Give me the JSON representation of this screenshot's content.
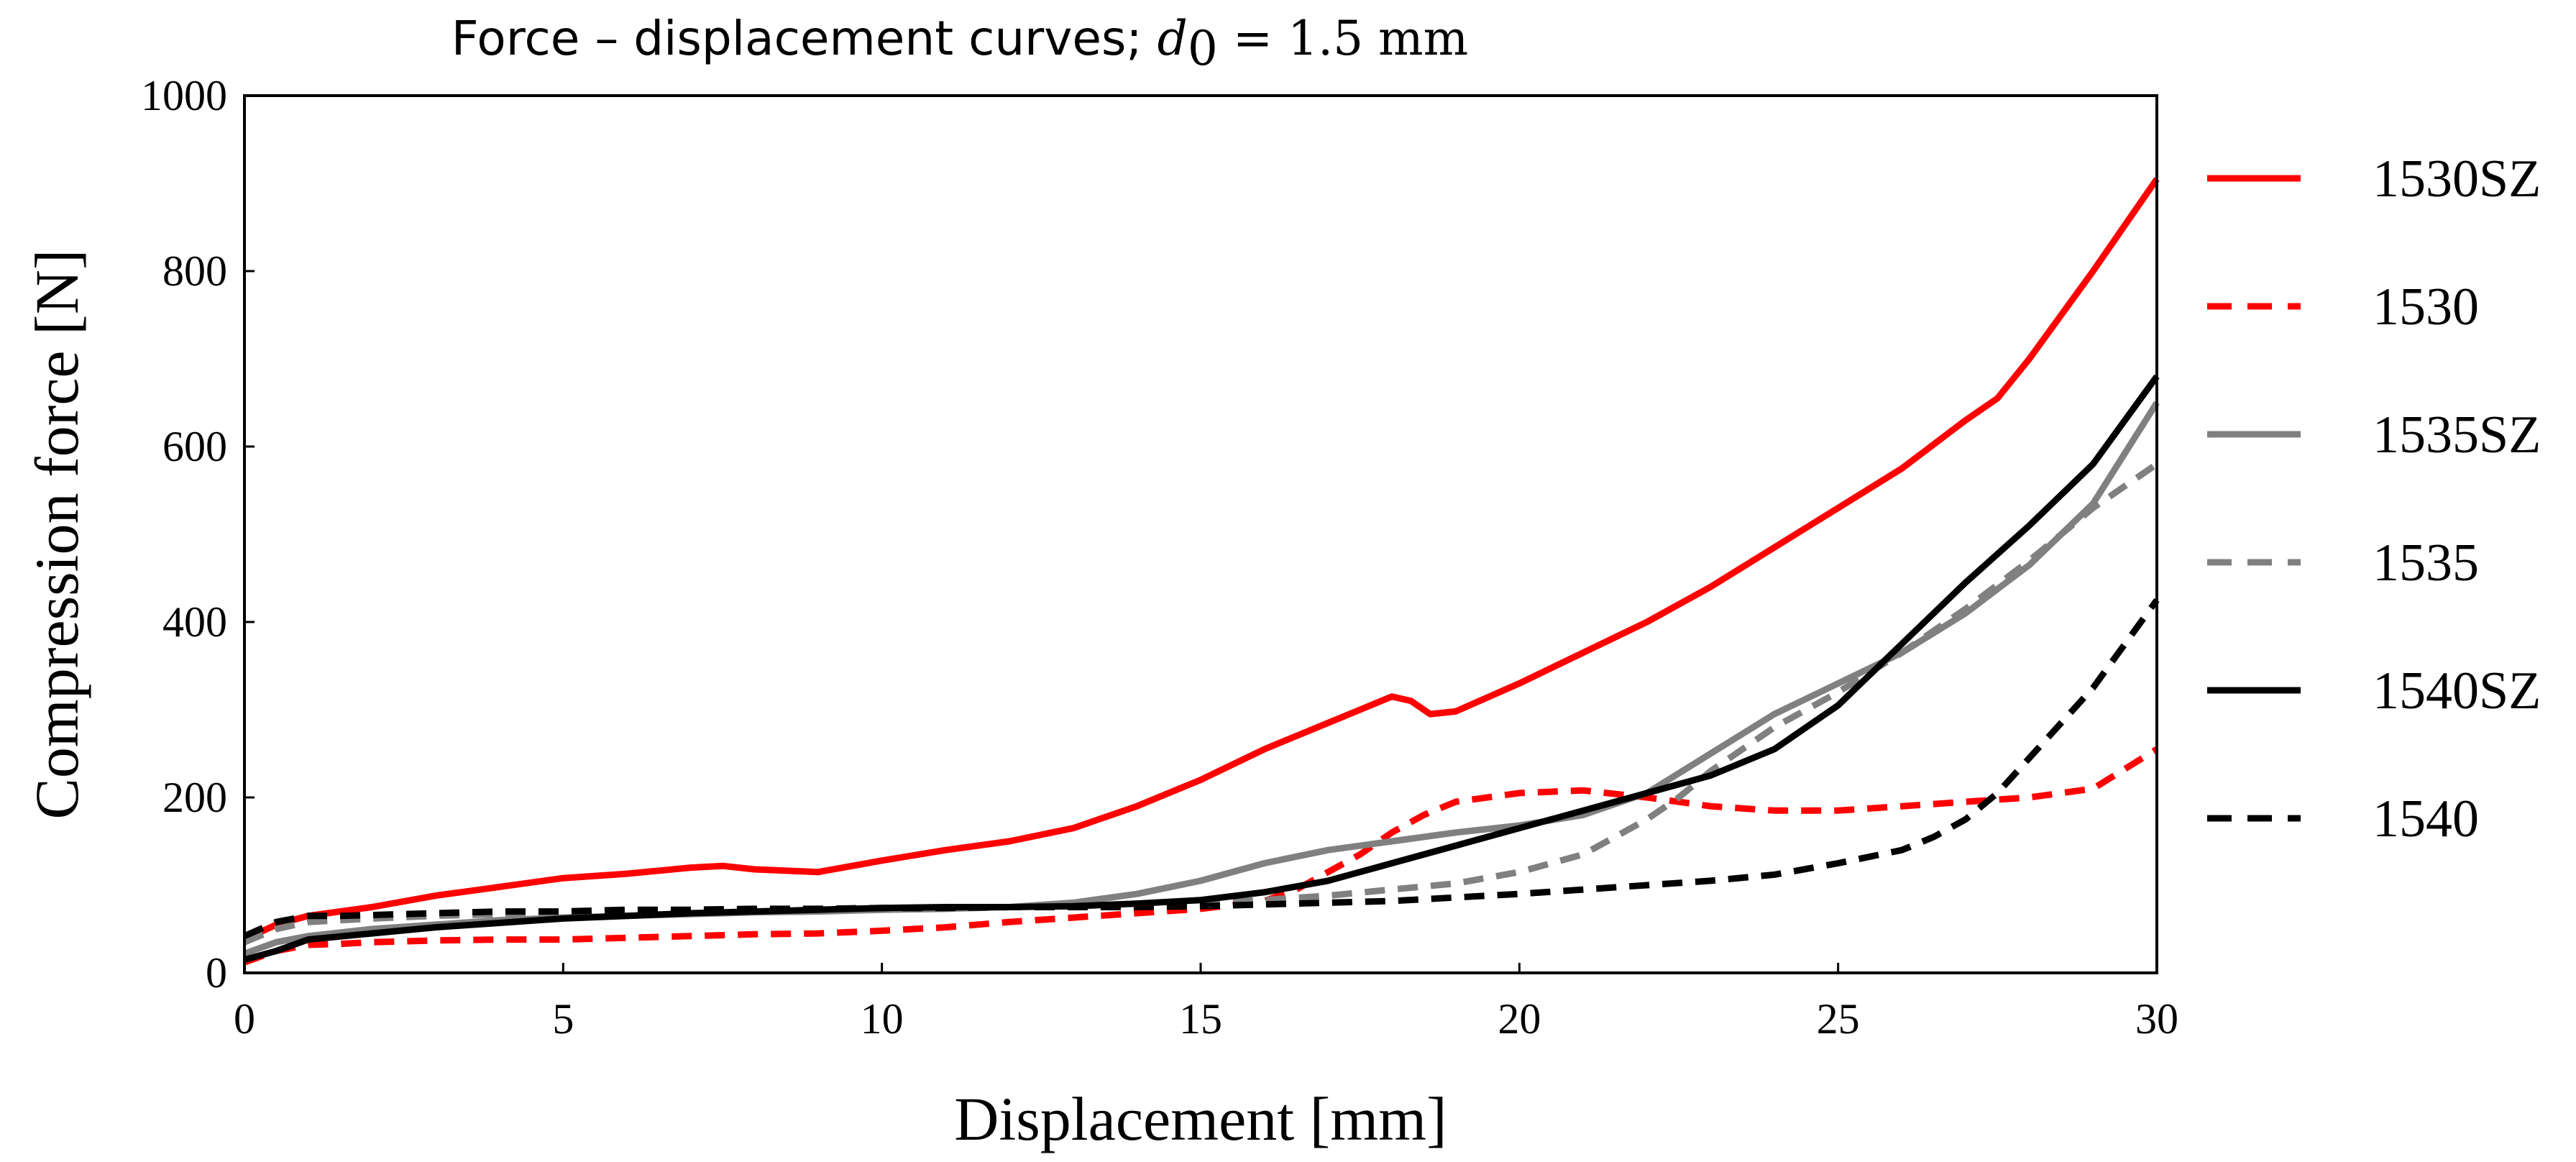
{
  "chart_data": {
    "type": "line",
    "title": "Force – displacement curves; ",
    "title_math": {
      "var": "d",
      "sub": "0",
      "eq": " = 1.5 mm"
    },
    "xlabel": "Displacement [mm]",
    "ylabel": "Compression force [N]",
    "xlim": [
      0,
      30
    ],
    "ylim": [
      0,
      1000
    ],
    "xticks": [
      "0",
      "5",
      "10",
      "15",
      "20",
      "25",
      "30"
    ],
    "yticks": [
      "0",
      "200",
      "400",
      "600",
      "800",
      "1000"
    ],
    "grid": false,
    "legend_position": "right",
    "series": [
      {
        "name": "1530SZ",
        "color": "#ff0000",
        "dash": "solid",
        "x": [
          0,
          0.5,
          1,
          2,
          3,
          4,
          5,
          6,
          7,
          7.5,
          8,
          9,
          10,
          11,
          12,
          13,
          14,
          15,
          16,
          17,
          17.5,
          18,
          18.3,
          18.6,
          19,
          20,
          21,
          22,
          23,
          24,
          25,
          26,
          27,
          27.5,
          28,
          29,
          30
        ],
        "y": [
          38,
          55,
          65,
          75,
          88,
          98,
          108,
          113,
          120,
          122,
          118,
          115,
          128,
          140,
          150,
          165,
          190,
          220,
          255,
          285,
          300,
          315,
          310,
          295,
          298,
          330,
          365,
          400,
          440,
          485,
          530,
          575,
          630,
          655,
          700,
          800,
          905
        ]
      },
      {
        "name": "1530",
        "color": "#ff0000",
        "dash": "dashed",
        "x": [
          0,
          0.5,
          1,
          1.5,
          2,
          3,
          4,
          5,
          6,
          7,
          8,
          9,
          10,
          11,
          12,
          13,
          14,
          15,
          16,
          16.5,
          17,
          17.5,
          18,
          18.5,
          19,
          20,
          21,
          22,
          23,
          24,
          25,
          26,
          27,
          28,
          29,
          30
        ],
        "y": [
          12,
          25,
          32,
          33,
          35,
          37,
          38,
          38,
          40,
          42,
          44,
          45,
          48,
          52,
          58,
          63,
          68,
          73,
          82,
          95,
          115,
          135,
          160,
          180,
          195,
          205,
          208,
          200,
          190,
          185,
          185,
          190,
          195,
          200,
          210,
          255
        ]
      },
      {
        "name": "1535SZ",
        "color": "#808080",
        "dash": "solid",
        "x": [
          0,
          0.5,
          1,
          2,
          3,
          4,
          5,
          6,
          7,
          8,
          9,
          10,
          11,
          12,
          13,
          14,
          15,
          16,
          17,
          18,
          19,
          20,
          21,
          22,
          23,
          24,
          25,
          26,
          27,
          28,
          29,
          30
        ],
        "y": [
          22,
          35,
          42,
          50,
          55,
          60,
          63,
          65,
          67,
          69,
          70,
          72,
          73,
          75,
          80,
          90,
          105,
          125,
          140,
          150,
          160,
          168,
          180,
          205,
          250,
          295,
          330,
          365,
          410,
          465,
          535,
          650
        ]
      },
      {
        "name": "1535",
        "color": "#808080",
        "dash": "dashed",
        "x": [
          0,
          0.5,
          1,
          2,
          3,
          4,
          5,
          6,
          7,
          8,
          9,
          10,
          11,
          12,
          13,
          14,
          15,
          16,
          17,
          18,
          19,
          20,
          21,
          22,
          22.5,
          23,
          24,
          25,
          26,
          27,
          28,
          29,
          30
        ],
        "y": [
          35,
          50,
          58,
          62,
          65,
          67,
          68,
          69,
          70,
          71,
          72,
          73,
          74,
          75,
          76,
          78,
          80,
          83,
          88,
          95,
          102,
          115,
          135,
          175,
          200,
          230,
          280,
          320,
          365,
          415,
          470,
          530,
          580
        ]
      },
      {
        "name": "1540SZ",
        "color": "#000000",
        "dash": "solid",
        "x": [
          0,
          0.5,
          1,
          2,
          3,
          4,
          5,
          6,
          7,
          8,
          9,
          10,
          11,
          12,
          13,
          14,
          15,
          16,
          17,
          18,
          19,
          20,
          21,
          22,
          23,
          24,
          25,
          26,
          27,
          28,
          29,
          30
        ],
        "y": [
          15,
          25,
          38,
          45,
          52,
          57,
          62,
          65,
          68,
          70,
          72,
          74,
          75,
          75,
          76,
          79,
          83,
          92,
          105,
          125,
          145,
          165,
          185,
          205,
          225,
          255,
          305,
          375,
          445,
          510,
          580,
          680
        ]
      },
      {
        "name": "1540",
        "color": "#000000",
        "dash": "dashed",
        "x": [
          0,
          0.5,
          1,
          1.5,
          2,
          3,
          4,
          5,
          6,
          7,
          8,
          9,
          10,
          11,
          12,
          13,
          14,
          15,
          16,
          17,
          18,
          19,
          20,
          21,
          22,
          23,
          24,
          25,
          26,
          26.5,
          27,
          27.5,
          28,
          29,
          30
        ],
        "y": [
          42,
          58,
          65,
          65,
          66,
          68,
          70,
          70,
          72,
          72,
          73,
          73,
          74,
          74,
          75,
          75,
          75,
          76,
          78,
          80,
          82,
          86,
          90,
          95,
          100,
          105,
          112,
          125,
          140,
          155,
          175,
          205,
          245,
          325,
          425
        ]
      }
    ]
  }
}
